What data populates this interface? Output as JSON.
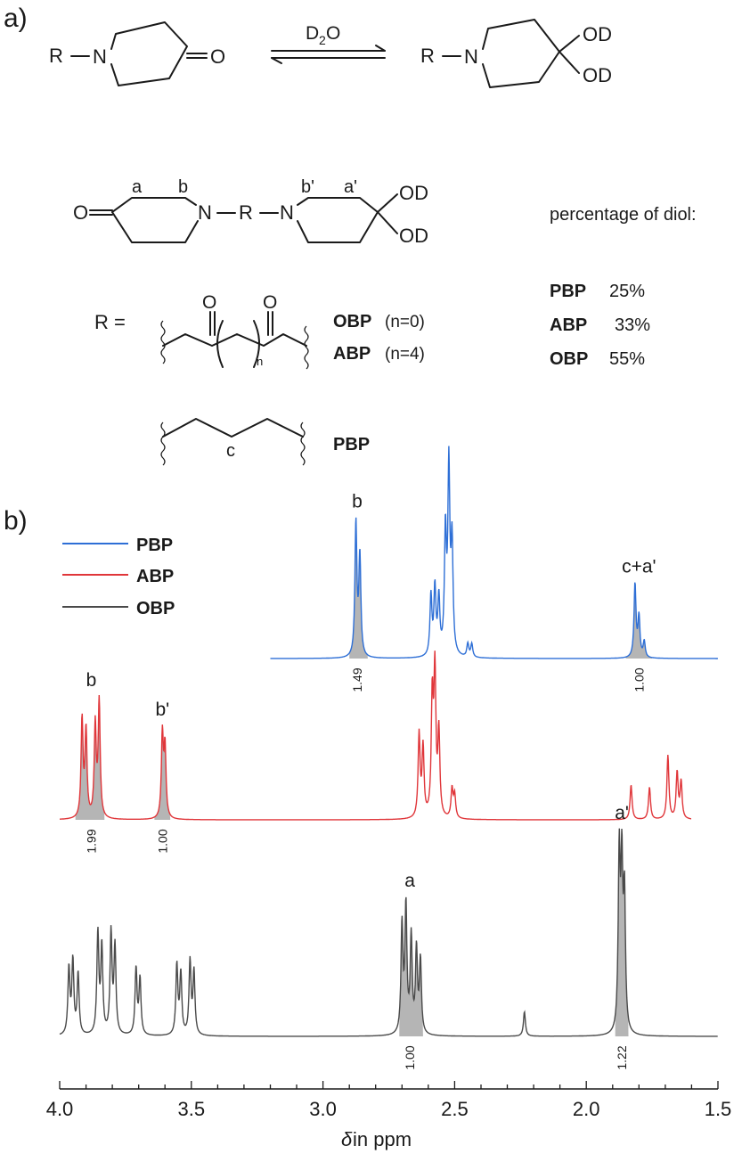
{
  "panel_a": {
    "label": "a)",
    "reaction": {
      "reagent_main": "D",
      "reagent_sub": "2",
      "reagent_tail": "O",
      "r": "R",
      "n": "N",
      "o": "O",
      "od": "OD"
    },
    "struct": {
      "a": "a",
      "b": "b",
      "b_prime": "b'",
      "a_prime": "a'",
      "o": "O",
      "n": "N",
      "r": "R",
      "od": "OD"
    },
    "r_def": {
      "r_eq": "R =",
      "o": "O",
      "n_sub": "n",
      "obp": "OBP",
      "obp_n": "(n=0)",
      "abp": "ABP",
      "abp_n": "(n=4)",
      "c": "c",
      "pbp": "PBP"
    },
    "diol": {
      "title": "percentage of diol:",
      "rows": [
        {
          "name": "PBP",
          "pct": "25%"
        },
        {
          "name": "ABP",
          "pct": "33%"
        },
        {
          "name": "OBP",
          "pct": "55%"
        }
      ]
    }
  },
  "panel_b": {
    "label": "b)"
  },
  "chart_data": {
    "type": "line",
    "xlabel_symbol": "δ",
    "xlabel_text": " in ppm",
    "xlim": [
      4.0,
      1.5
    ],
    "x_ticks": [
      "4.0",
      "3.5",
      "3.0",
      "2.5",
      "2.0",
      "1.5"
    ],
    "legend": {
      "placement": "top-left",
      "entries": [
        {
          "name": "PBP",
          "color": "#2e6fd6"
        },
        {
          "name": "ABP",
          "color": "#e0363a"
        },
        {
          "name": "OBP",
          "color": "#4a4a4a"
        }
      ]
    },
    "series": [
      {
        "name": "PBP",
        "color": "#2e6fd6",
        "peaks": [
          {
            "x": 2.875,
            "h": 1.0
          },
          {
            "x": 2.86,
            "h": 0.75
          },
          {
            "x": 2.59,
            "h": 0.45
          },
          {
            "x": 2.575,
            "h": 0.5
          },
          {
            "x": 2.56,
            "h": 0.42
          },
          {
            "x": 2.535,
            "h": 0.9
          },
          {
            "x": 2.522,
            "h": 1.38
          },
          {
            "x": 2.51,
            "h": 0.82
          },
          {
            "x": 2.45,
            "h": 0.1
          },
          {
            "x": 2.435,
            "h": 0.1
          },
          {
            "x": 1.815,
            "h": 0.55
          },
          {
            "x": 1.8,
            "h": 0.3
          },
          {
            "x": 1.78,
            "h": 0.12
          }
        ],
        "labels": [
          {
            "x": 2.87,
            "text": "b"
          },
          {
            "x": 1.8,
            "text": "c+a'"
          }
        ],
        "integrals": [
          {
            "x": 2.87,
            "value": "1.49",
            "range": [
              2.9,
              2.83
            ]
          },
          {
            "x": 1.8,
            "value": "1.00",
            "range": [
              1.85,
              1.75
            ]
          }
        ]
      },
      {
        "name": "ABP",
        "color": "#e0363a",
        "peaks": [
          {
            "x": 3.915,
            "h": 0.85
          },
          {
            "x": 3.9,
            "h": 0.75
          },
          {
            "x": 3.865,
            "h": 0.8
          },
          {
            "x": 3.85,
            "h": 1.0
          },
          {
            "x": 3.61,
            "h": 0.72
          },
          {
            "x": 3.6,
            "h": 0.6
          },
          {
            "x": 2.635,
            "h": 0.72
          },
          {
            "x": 2.62,
            "h": 0.6
          },
          {
            "x": 2.585,
            "h": 1.0
          },
          {
            "x": 2.575,
            "h": 1.22
          },
          {
            "x": 2.56,
            "h": 0.72
          },
          {
            "x": 2.51,
            "h": 0.25
          },
          {
            "x": 2.5,
            "h": 0.2
          },
          {
            "x": 1.83,
            "h": 0.3
          },
          {
            "x": 1.76,
            "h": 0.28
          },
          {
            "x": 1.69,
            "h": 0.55
          },
          {
            "x": 1.655,
            "h": 0.4
          },
          {
            "x": 1.64,
            "h": 0.32
          }
        ],
        "labels": [
          {
            "x": 3.88,
            "text": "b"
          },
          {
            "x": 3.61,
            "text": "b'"
          }
        ],
        "integrals": [
          {
            "x": 3.88,
            "value": "1.99",
            "range": [
              3.94,
              3.83
            ]
          },
          {
            "x": 3.61,
            "value": "1.00",
            "range": [
              3.64,
              3.58
            ]
          }
        ]
      },
      {
        "name": "OBP",
        "color": "#4a4a4a",
        "peaks": [
          {
            "x": 3.965,
            "h": 0.38
          },
          {
            "x": 3.95,
            "h": 0.42
          },
          {
            "x": 3.93,
            "h": 0.35
          },
          {
            "x": 3.855,
            "h": 0.58
          },
          {
            "x": 3.84,
            "h": 0.5
          },
          {
            "x": 3.805,
            "h": 0.58
          },
          {
            "x": 3.79,
            "h": 0.5
          },
          {
            "x": 3.71,
            "h": 0.38
          },
          {
            "x": 3.695,
            "h": 0.32
          },
          {
            "x": 3.555,
            "h": 0.4
          },
          {
            "x": 3.54,
            "h": 0.35
          },
          {
            "x": 3.505,
            "h": 0.42
          },
          {
            "x": 3.49,
            "h": 0.36
          },
          {
            "x": 2.7,
            "h": 0.62
          },
          {
            "x": 2.685,
            "h": 0.72
          },
          {
            "x": 2.665,
            "h": 0.55
          },
          {
            "x": 2.645,
            "h": 0.48
          },
          {
            "x": 2.63,
            "h": 0.42
          },
          {
            "x": 2.235,
            "h": 0.14
          },
          {
            "x": 1.875,
            "h": 1.0
          },
          {
            "x": 1.865,
            "h": 0.9
          },
          {
            "x": 1.855,
            "h": 0.75
          }
        ],
        "labels": [
          {
            "x": 2.67,
            "text": "a"
          },
          {
            "x": 1.865,
            "text": "a'"
          }
        ],
        "integrals": [
          {
            "x": 2.67,
            "value": "1.00",
            "range": [
              2.71,
              2.62
            ]
          },
          {
            "x": 1.865,
            "value": "1.22",
            "range": [
              1.89,
              1.84
            ]
          }
        ]
      }
    ]
  }
}
